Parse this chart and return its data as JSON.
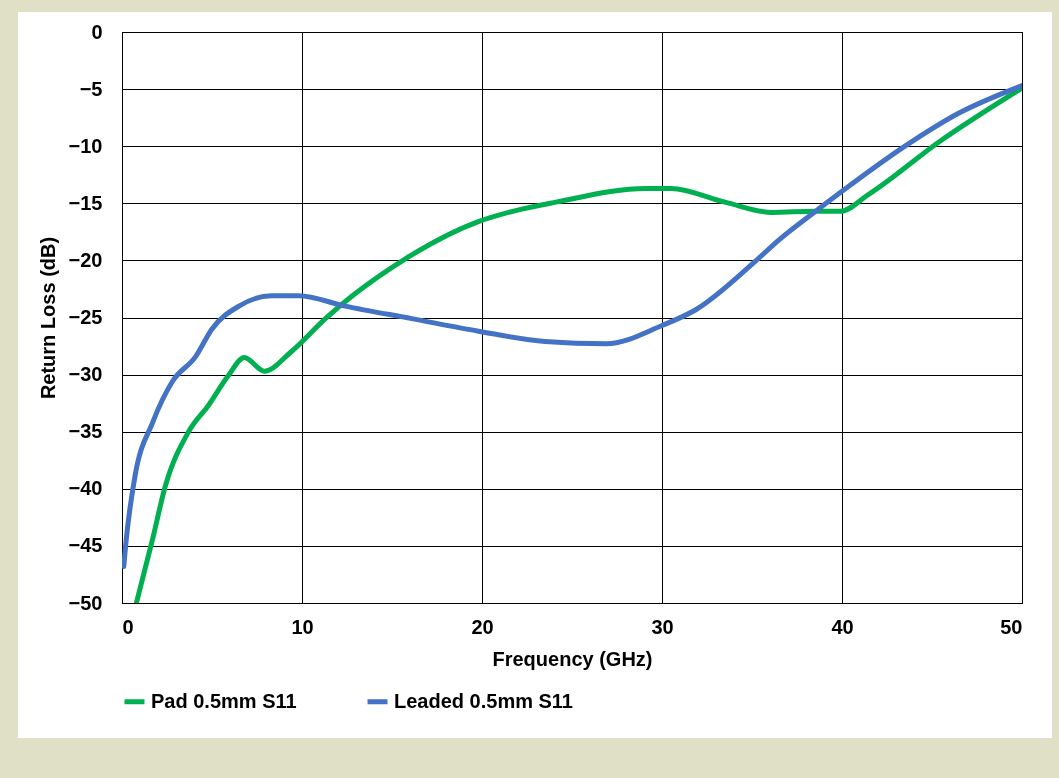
{
  "chart_data": {
    "type": "line",
    "xlabel": "Frequency (GHz)",
    "ylabel": "Return Loss (dB)",
    "xlim": [
      0,
      50
    ],
    "xticks": [
      0,
      10,
      20,
      30,
      40,
      50
    ],
    "ylim": [
      -50,
      0
    ],
    "yticks": [
      -50,
      -45,
      -40,
      -35,
      -30,
      -25,
      -20,
      -15,
      -10,
      -5,
      0
    ],
    "grid": true,
    "legend": "bottom",
    "line_style": "solid",
    "series": [
      {
        "name": "Pad 0.5mm S11",
        "color": "#00b050",
        "x": [
          0.8,
          1.7,
          2.4,
          3.7,
          4.8,
          5.9,
          6.8,
          7.9,
          9.4,
          11.3,
          12.8,
          15.7,
          19.8,
          21.7,
          24.1,
          29.1,
          30.5,
          33.5,
          36.1,
          38.5,
          39.9,
          41.5,
          45.5,
          50
        ],
        "values": [
          -50,
          -44.4,
          -39.8,
          -35,
          -32.7,
          -30.1,
          -28.5,
          -29.7,
          -28,
          -25.1,
          -23.1,
          -19.9,
          -16.6,
          -15.7,
          -14.9,
          -13.7,
          -13.7,
          -14.9,
          -15.8,
          -15.7,
          -15.7,
          -14.2,
          -9.5,
          -4.9
        ]
      },
      {
        "name": "Leaded 0.5mm S11",
        "color": "#4472c4",
        "x": [
          0.1,
          0.2,
          0.7,
          1.7,
          2.8,
          4.1,
          5,
          6.5,
          8.3,
          9.8,
          12.4,
          16.1,
          19.8,
          23.5,
          26.9,
          30,
          31.9,
          35.1,
          36.5,
          38.7,
          40.3,
          43.5,
          46.5,
          50
        ],
        "values": [
          -46.8,
          -45,
          -39.1,
          -34.2,
          -30.6,
          -28.4,
          -26,
          -24,
          -23.1,
          -23.1,
          -24,
          -25.1,
          -26.2,
          -27.1,
          -27.3,
          -25.7,
          -24.3,
          -20.2,
          -18.2,
          -15.5,
          -13.6,
          -10,
          -7.1,
          -4.7
        ]
      }
    ]
  }
}
